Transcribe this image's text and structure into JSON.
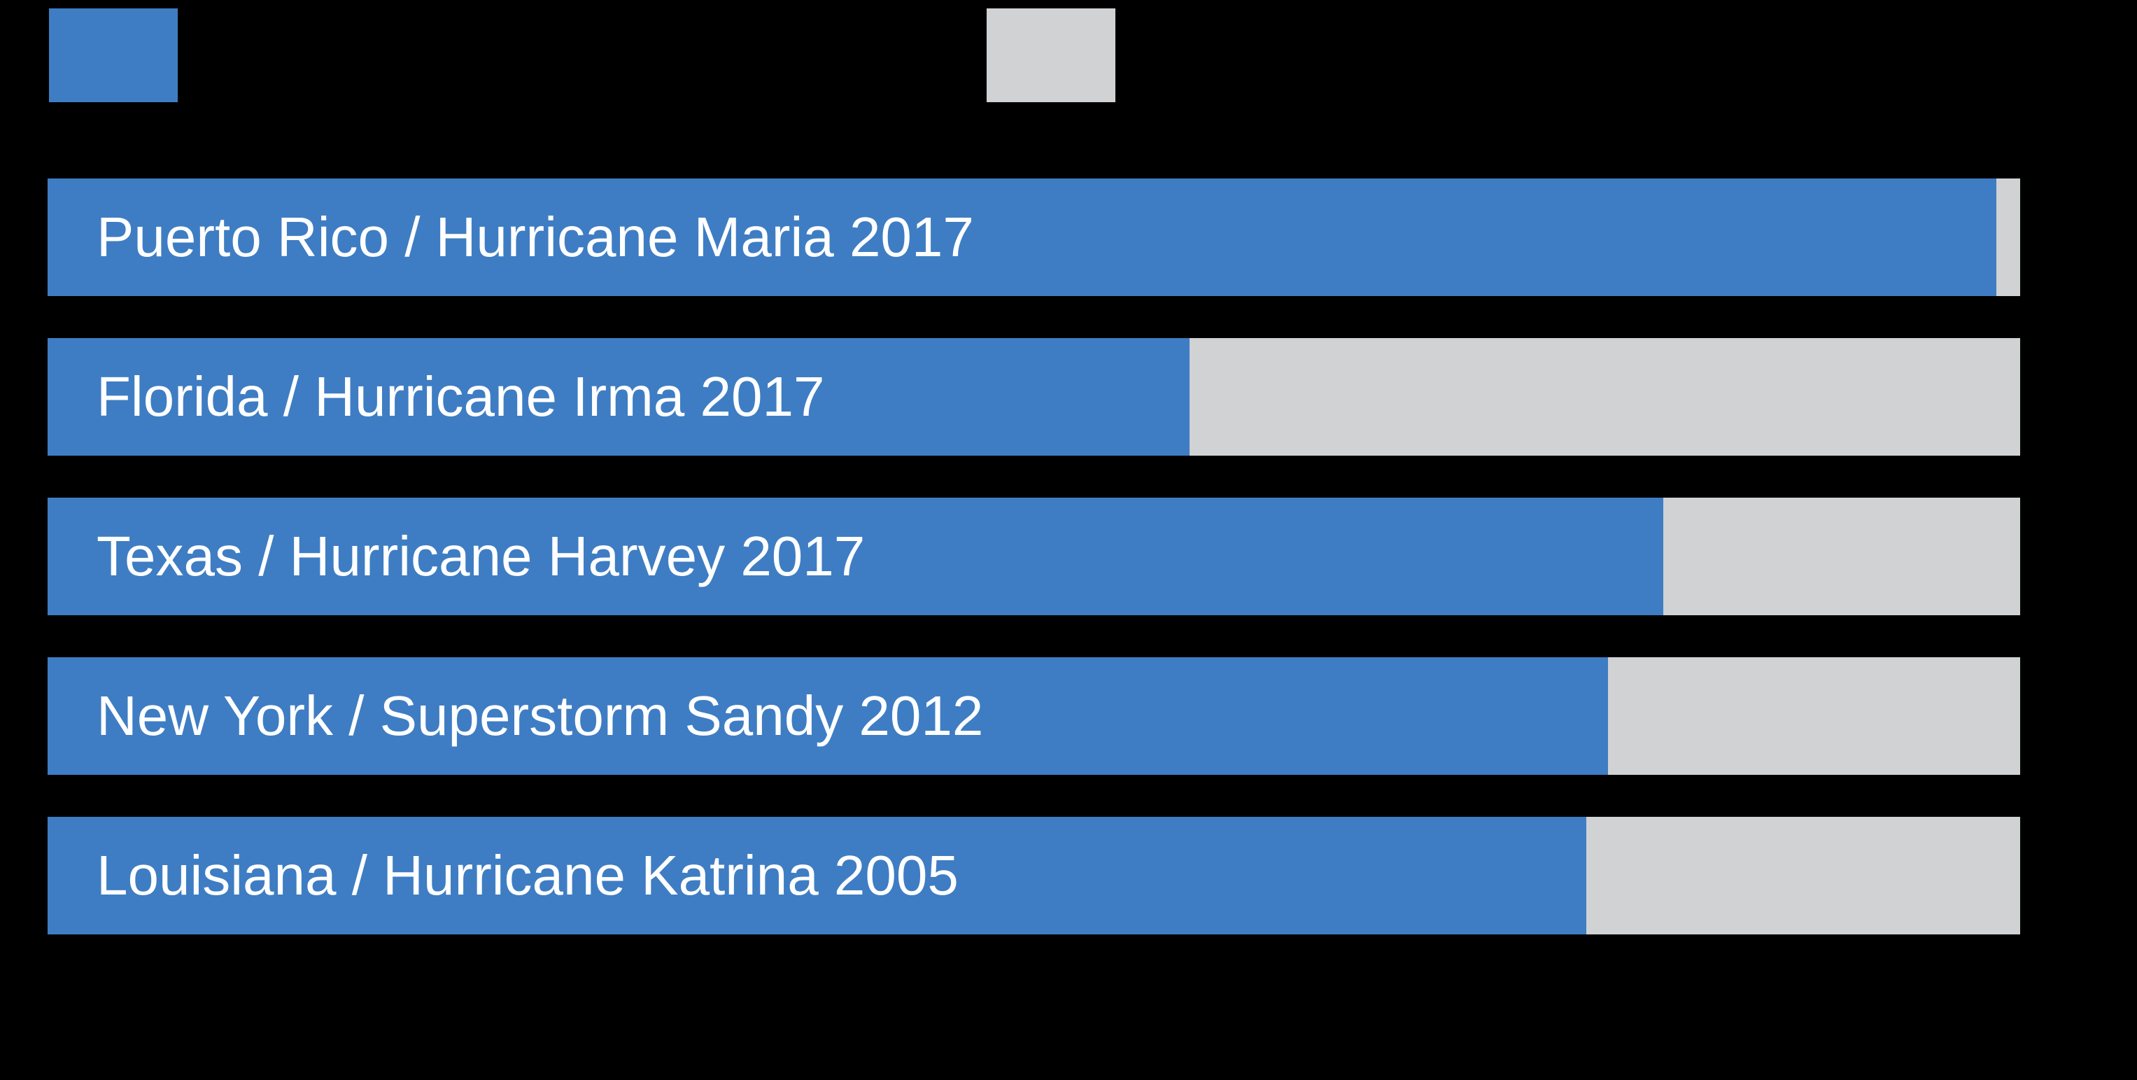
{
  "page": {
    "background_color": "#000000",
    "note": "Chart title, axis labels and legend text are not visible (rendered black on black); only swatches, bars and in-bar labels are visible."
  },
  "legend": {
    "position": "top",
    "items": [
      {
        "swatch_color": "#3E7DC3",
        "label": ""
      },
      {
        "swatch_color": "#D0D2D4",
        "label": ""
      }
    ]
  },
  "chart_data": {
    "type": "bar",
    "orientation": "horizontal",
    "stacked": true,
    "unit": "percent",
    "xlim": [
      0,
      100
    ],
    "grid": false,
    "legend_position": "top",
    "title": "",
    "xlabel": "",
    "ylabel": "",
    "categories": [
      "Puerto Rico / Hurricane Maria 2017",
      "Florida / Hurricane Irma 2017",
      "Texas / Hurricane Harvey 2017",
      "New York / Superstorm Sandy 2012",
      "Louisiana / Hurricane Katrina 2005"
    ],
    "series": [
      {
        "name": "",
        "color": "#3E7DC3",
        "values": [
          98.8,
          57.9,
          81.9,
          79.1,
          78.0
        ]
      },
      {
        "name": "",
        "color": "#D0D2D4",
        "values": [
          1.2,
          42.1,
          18.1,
          20.9,
          22.0
        ]
      }
    ],
    "bar_label_color": "#FFFFFF"
  }
}
